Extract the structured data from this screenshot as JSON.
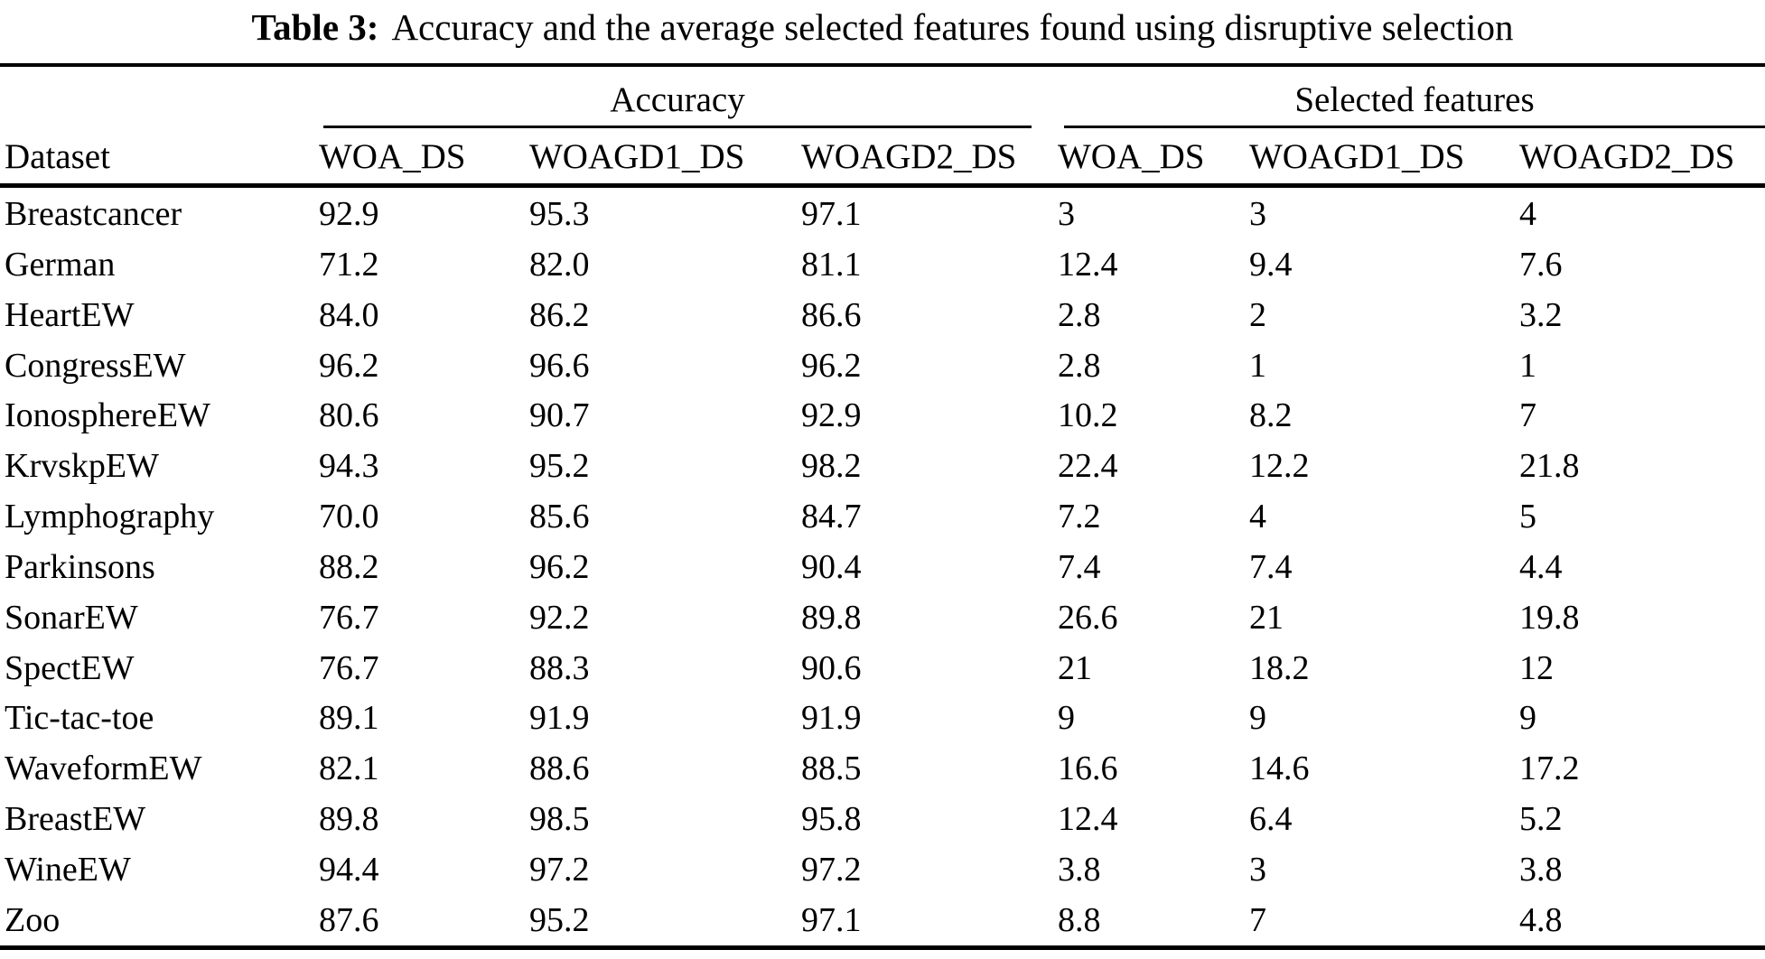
{
  "title": {
    "label": "Table 3:",
    "text": "Accuracy and the average selected features found using disruptive selection"
  },
  "table": {
    "group_headers": {
      "accuracy": "Accuracy",
      "selected_features": "Selected features"
    },
    "dataset_header": "Dataset",
    "column_headers": {
      "acc_woa_ds": "WOA_DS",
      "acc_woagd1_ds": "WOAGD1_DS",
      "acc_woagd2_ds": "WOAGD2_DS",
      "sel_woa_ds": "WOA_DS",
      "sel_woagd1_ds": "WOAGD1_DS",
      "sel_woagd2_ds": "WOAGD2_DS"
    },
    "rows": [
      {
        "dataset": "Breastcancer",
        "values": [
          "92.9",
          "95.3",
          "97.1",
          "3",
          "3",
          "4"
        ]
      },
      {
        "dataset": "German",
        "values": [
          "71.2",
          "82.0",
          "81.1",
          "12.4",
          "9.4",
          "7.6"
        ]
      },
      {
        "dataset": "HeartEW",
        "values": [
          "84.0",
          "86.2",
          "86.6",
          "2.8",
          "2",
          "3.2"
        ]
      },
      {
        "dataset": "CongressEW",
        "values": [
          "96.2",
          "96.6",
          "96.2",
          "2.8",
          "1",
          "1"
        ]
      },
      {
        "dataset": "IonosphereEW",
        "values": [
          "80.6",
          "90.7",
          "92.9",
          "10.2",
          "8.2",
          "7"
        ]
      },
      {
        "dataset": "KrvskpEW",
        "values": [
          "94.3",
          "95.2",
          "98.2",
          "22.4",
          "12.2",
          "21.8"
        ]
      },
      {
        "dataset": "Lymphography",
        "values": [
          "70.0",
          "85.6",
          "84.7",
          "7.2",
          "4",
          "5"
        ]
      },
      {
        "dataset": "Parkinsons",
        "values": [
          "88.2",
          "96.2",
          "90.4",
          "7.4",
          "7.4",
          "4.4"
        ]
      },
      {
        "dataset": "SonarEW",
        "values": [
          "76.7",
          "92.2",
          "89.8",
          "26.6",
          "21",
          "19.8"
        ]
      },
      {
        "dataset": "SpectEW",
        "values": [
          "76.7",
          "88.3",
          "90.6",
          "21",
          "18.2",
          "12"
        ]
      },
      {
        "dataset": "Tic-tac-toe",
        "values": [
          "89.1",
          "91.9",
          "91.9",
          "9",
          "9",
          "9"
        ]
      },
      {
        "dataset": "WaveformEW",
        "values": [
          "82.1",
          "88.6",
          "88.5",
          "16.6",
          "14.6",
          "17.2"
        ]
      },
      {
        "dataset": "BreastEW",
        "values": [
          "89.8",
          "98.5",
          "95.8",
          "12.4",
          "6.4",
          "5.2"
        ]
      },
      {
        "dataset": "WineEW",
        "values": [
          "94.4",
          "97.2",
          "97.2",
          "3.8",
          "3",
          "3.8"
        ]
      },
      {
        "dataset": "Zoo",
        "values": [
          "87.6",
          "95.2",
          "97.1",
          "8.8",
          "7",
          "4.8"
        ]
      }
    ]
  }
}
